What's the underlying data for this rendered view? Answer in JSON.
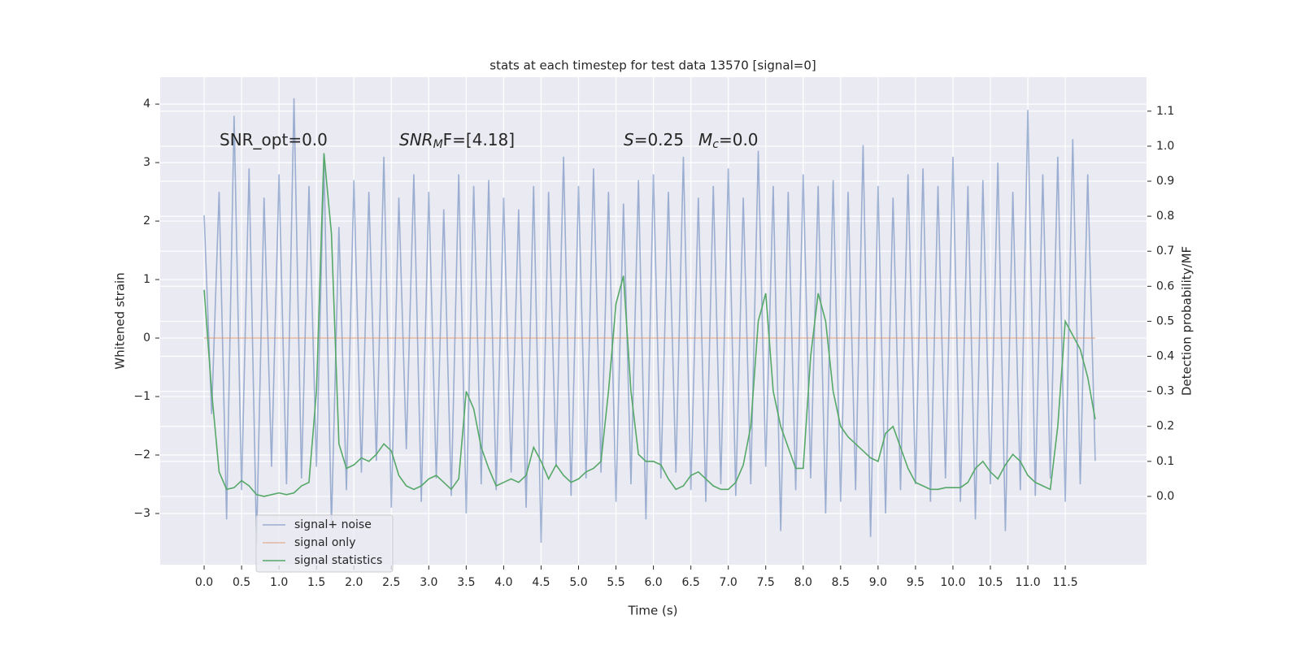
{
  "chart_data": {
    "type": "line",
    "title": "stats at each timestep for test data 13570 [signal=0]",
    "xlabel": "Time (s)",
    "ylabel": "Whitened strain",
    "y2label": "Detection probability/MF",
    "annotations": [
      {
        "main": "SNR_opt=0.0",
        "math": false
      },
      {
        "main": "SNR",
        "sub": "M",
        "rest": "F=[4.18]",
        "math": true
      },
      {
        "main": "S",
        "rest": "=0.25",
        "math": true
      },
      {
        "main": "M",
        "sub": "c",
        "rest": "=0.0",
        "math": true
      }
    ],
    "xlim": [
      -0.587,
      12.585
    ],
    "ylim": [
      -3.875,
      4.46
    ],
    "y2lim": [
      -0.195,
      1.197
    ],
    "xticks": [
      {
        "value": 0,
        "label": "0.0"
      },
      0.5,
      {
        "value": 1,
        "label": "1.0"
      },
      1.5,
      {
        "value": 2,
        "label": "2.0"
      },
      2.5,
      {
        "value": 3,
        "label": "3.0"
      },
      3.5,
      {
        "value": 4,
        "label": "4.0"
      },
      4.5,
      {
        "value": 5,
        "label": "5.0"
      },
      5.5,
      {
        "value": 6,
        "label": "6.0"
      },
      6.5,
      {
        "value": 7,
        "label": "7.0"
      },
      7.5,
      {
        "value": 8,
        "label": "8.0"
      },
      8.5,
      {
        "value": 9,
        "label": "9.0"
      },
      9.5,
      {
        "value": 10,
        "label": "10.0"
      },
      10.5,
      {
        "value": 11,
        "label": "11.0"
      },
      11.5
    ],
    "yticks": [
      {
        "value": -3,
        "label": "−3"
      },
      {
        "value": -2,
        "label": "−2"
      },
      {
        "value": -1,
        "label": "−1"
      },
      0,
      1,
      2,
      3,
      4
    ],
    "y2ticks": [
      {
        "value": 0,
        "label": "0.0"
      },
      0.1,
      0.2,
      0.3,
      0.4,
      0.5,
      0.6,
      0.7,
      0.8,
      0.9,
      {
        "value": 1,
        "label": "1.0"
      },
      1.1
    ],
    "grid": true,
    "legend": "lower left",
    "series": [
      {
        "name": "signal+ noise",
        "color": "#4c72b0",
        "alpha": 0.5,
        "x": [
          0,
          0.1,
          0.2,
          0.3,
          0.4,
          0.5,
          0.6,
          0.7,
          0.8,
          0.9,
          1,
          1.1,
          1.2,
          1.3,
          1.4,
          1.5,
          1.6,
          1.7,
          1.8,
          1.9,
          2,
          2.1,
          2.2,
          2.3,
          2.4,
          2.5,
          2.6,
          2.7,
          2.8,
          2.9,
          3,
          3.1,
          3.2,
          3.3,
          3.4,
          3.5,
          3.6,
          3.7,
          3.8,
          3.9,
          4,
          4.1,
          4.2,
          4.3,
          4.4,
          4.5,
          4.6,
          4.7,
          4.8,
          4.9,
          5,
          5.1,
          5.2,
          5.3,
          5.4,
          5.5,
          5.6,
          5.7,
          5.8,
          5.9,
          6,
          6.1,
          6.2,
          6.3,
          6.4,
          6.5,
          6.6,
          6.7,
          6.8,
          6.9,
          7,
          7.1,
          7.2,
          7.3,
          7.4,
          7.5,
          7.6,
          7.7,
          7.8,
          7.9,
          8,
          8.1,
          8.2,
          8.3,
          8.4,
          8.5,
          8.6,
          8.7,
          8.8,
          8.9,
          9,
          9.1,
          9.2,
          9.3,
          9.4,
          9.5,
          9.6,
          9.7,
          9.8,
          9.9,
          10,
          10.1,
          10.2,
          10.3,
          10.4,
          10.5,
          10.6,
          10.7,
          10.8,
          10.9,
          11,
          11.1,
          11.2,
          11.3,
          11.4,
          11.5,
          11.6,
          11.7,
          11.8,
          11.9
        ],
        "values": [
          2.1,
          -1.3,
          2.5,
          -3.1,
          3.8,
          -2.6,
          2.9,
          -3.5,
          2.4,
          -2.2,
          2.8,
          -2.5,
          4.1,
          -2.4,
          2.6,
          -2.2,
          3.0,
          -3.2,
          1.9,
          -2.6,
          2.7,
          -2.3,
          2.5,
          -2.1,
          3.1,
          -2.9,
          2.4,
          -1.9,
          2.8,
          -2.8,
          2.5,
          -2.4,
          2.2,
          -2.7,
          2.8,
          -3.0,
          2.6,
          -2.5,
          2.7,
          -2.6,
          2.4,
          -2.3,
          2.2,
          -2.9,
          2.6,
          -3.5,
          2.5,
          -2.2,
          3.1,
          -2.7,
          2.6,
          -2.4,
          2.9,
          -2.3,
          2.5,
          -2.8,
          2.3,
          -2.5,
          2.7,
          -3.1,
          2.8,
          -2.4,
          2.5,
          -2.3,
          3.1,
          -2.6,
          2.4,
          -2.8,
          2.6,
          -2.5,
          2.9,
          -2.7,
          2.4,
          -2.5,
          3.2,
          -2.2,
          2.6,
          -3.3,
          2.5,
          -2.6,
          2.8,
          -2.4,
          2.6,
          -3.0,
          2.7,
          -2.8,
          2.5,
          -2.6,
          3.3,
          -3.4,
          2.6,
          -3.0,
          2.4,
          -2.6,
          2.8,
          -2.5,
          2.9,
          -2.8,
          2.6,
          -2.4,
          3.1,
          -2.8,
          2.6,
          -3.1,
          2.7,
          -2.5,
          3.0,
          -3.3,
          2.5,
          -2.6,
          3.9,
          -2.7,
          2.8,
          -2.4,
          3.1,
          -2.8,
          3.4,
          -2.5,
          2.8,
          -2.1
        ]
      },
      {
        "name": "signal only",
        "color": "#dd8452",
        "alpha": 0.5,
        "x": [
          0,
          11.9
        ],
        "values": [
          0,
          0
        ]
      },
      {
        "name": "signal statistics",
        "color": "#55a868",
        "alpha": 1,
        "axis": "y2",
        "x": [
          0,
          0.1,
          0.2,
          0.3,
          0.4,
          0.5,
          0.6,
          0.7,
          0.8,
          0.9,
          1,
          1.1,
          1.2,
          1.3,
          1.4,
          1.5,
          1.6,
          1.7,
          1.8,
          1.9,
          2,
          2.1,
          2.2,
          2.3,
          2.4,
          2.5,
          2.6,
          2.7,
          2.8,
          2.9,
          3,
          3.1,
          3.2,
          3.3,
          3.4,
          3.5,
          3.6,
          3.7,
          3.8,
          3.9,
          4,
          4.1,
          4.2,
          4.3,
          4.4,
          4.5,
          4.6,
          4.7,
          4.8,
          4.9,
          5,
          5.1,
          5.2,
          5.3,
          5.4,
          5.5,
          5.6,
          5.7,
          5.8,
          5.9,
          6,
          6.1,
          6.2,
          6.3,
          6.4,
          6.5,
          6.6,
          6.7,
          6.8,
          6.9,
          7,
          7.1,
          7.2,
          7.3,
          7.4,
          7.5,
          7.6,
          7.7,
          7.8,
          7.9,
          8,
          8.1,
          8.2,
          8.3,
          8.4,
          8.5,
          8.6,
          8.7,
          8.8,
          8.9,
          9,
          9.1,
          9.2,
          9.3,
          9.4,
          9.5,
          9.6,
          9.7,
          9.8,
          9.9,
          10,
          10.1,
          10.2,
          10.3,
          10.4,
          10.5,
          10.6,
          10.7,
          10.8,
          10.9,
          11,
          11.1,
          11.2,
          11.3,
          11.4,
          11.5,
          11.6,
          11.7,
          11.8,
          11.9
        ],
        "values": [
          0.59,
          0.3,
          0.07,
          0.02,
          0.025,
          0.045,
          0.03,
          0.005,
          0.0,
          0.005,
          0.01,
          0.005,
          0.01,
          0.03,
          0.04,
          0.3,
          0.98,
          0.75,
          0.15,
          0.08,
          0.09,
          0.11,
          0.1,
          0.12,
          0.15,
          0.13,
          0.06,
          0.03,
          0.02,
          0.03,
          0.05,
          0.06,
          0.04,
          0.02,
          0.05,
          0.3,
          0.25,
          0.14,
          0.08,
          0.03,
          0.04,
          0.05,
          0.04,
          0.06,
          0.14,
          0.1,
          0.05,
          0.09,
          0.06,
          0.04,
          0.05,
          0.07,
          0.08,
          0.1,
          0.3,
          0.55,
          0.63,
          0.3,
          0.12,
          0.1,
          0.1,
          0.09,
          0.05,
          0.02,
          0.03,
          0.06,
          0.07,
          0.05,
          0.03,
          0.02,
          0.02,
          0.04,
          0.09,
          0.2,
          0.5,
          0.58,
          0.3,
          0.2,
          0.14,
          0.08,
          0.08,
          0.4,
          0.58,
          0.5,
          0.3,
          0.2,
          0.17,
          0.15,
          0.13,
          0.11,
          0.1,
          0.18,
          0.2,
          0.14,
          0.08,
          0.04,
          0.03,
          0.02,
          0.02,
          0.025,
          0.025,
          0.025,
          0.04,
          0.08,
          0.1,
          0.07,
          0.05,
          0.09,
          0.12,
          0.1,
          0.06,
          0.04,
          0.03,
          0.02,
          0.2,
          0.5,
          0.46,
          0.42,
          0.34,
          0.22
        ]
      }
    ]
  }
}
